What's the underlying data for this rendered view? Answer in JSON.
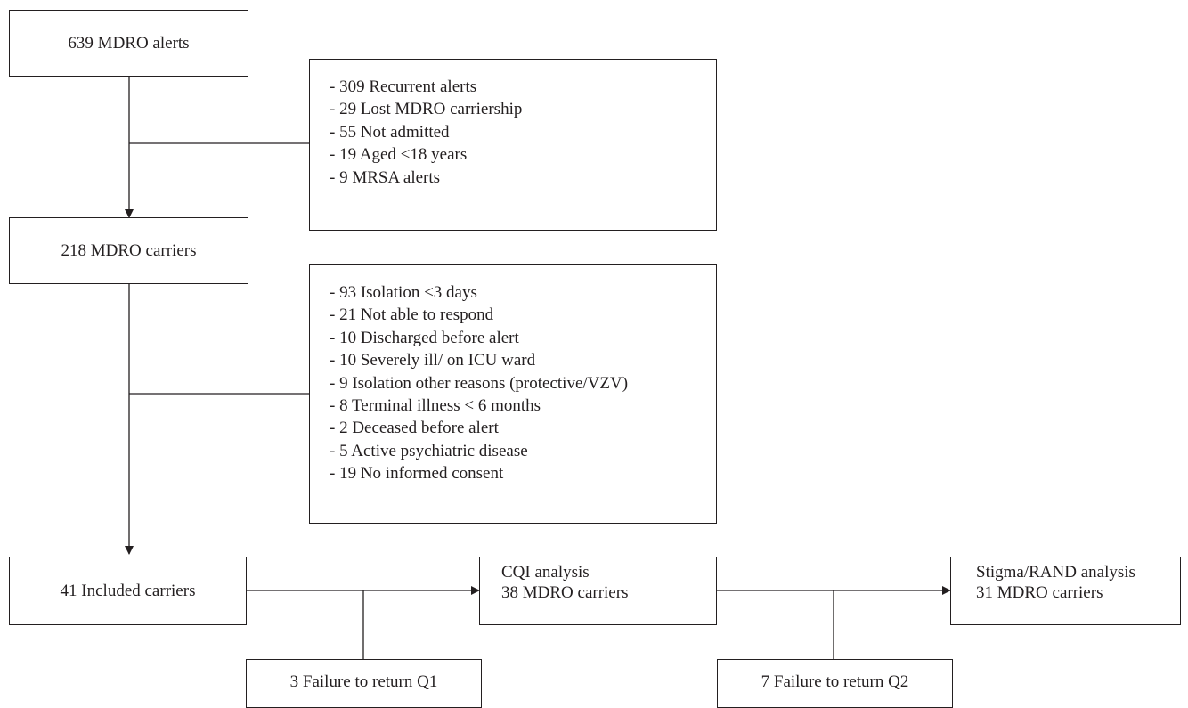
{
  "nodes": {
    "alerts": "639 MDRO alerts",
    "carriers": "218 MDRO carriers",
    "included": "41 Included carriers",
    "cqi": [
      "CQI analysis",
      "38 MDRO carriers"
    ],
    "stigma": [
      "Stigma/RAND analysis",
      "31 MDRO carriers"
    ],
    "fail_q1": "3 Failure to return Q1",
    "fail_q2": "7 Failure to return Q2"
  },
  "exclusions_1": [
    "- 309 Recurrent alerts",
    "- 29 Lost MDRO carriership",
    "- 55 Not admitted",
    "- 19 Aged <18 years",
    "- 9 MRSA alerts"
  ],
  "exclusions_2": [
    "- 93 Isolation <3 days",
    "- 21 Not able to respond",
    "- 10 Discharged before alert",
    "- 10 Severely ill/ on ICU ward",
    "- 9 Isolation other reasons (protective/VZV)",
    "- 8 Terminal illness < 6 months",
    "- 2 Deceased before alert",
    "- 5 Active psychiatric disease",
    "- 19 No informed consent"
  ],
  "colors": {
    "line": "#231f20",
    "background": "#ffffff"
  }
}
